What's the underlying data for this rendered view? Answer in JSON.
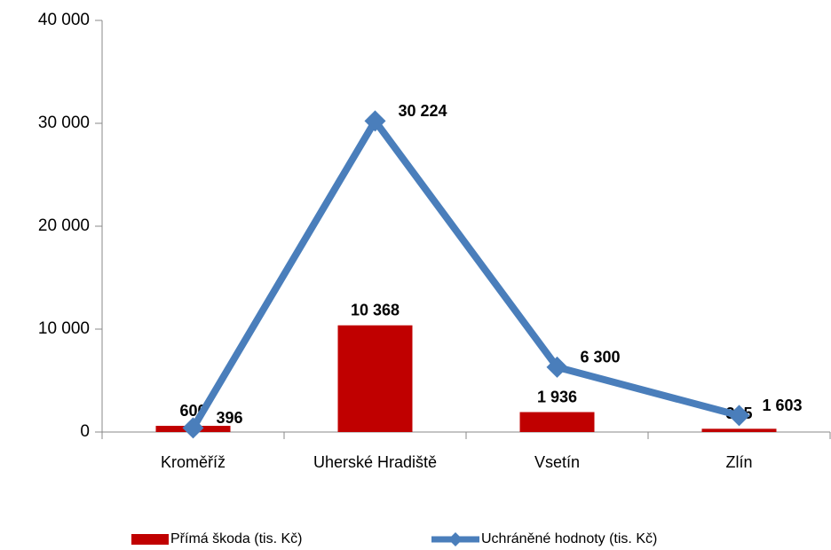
{
  "chart_data": {
    "type": "bar",
    "categories": [
      "Kroměříž",
      "Uherské Hradiště",
      "Vsetín",
      "Zlín"
    ],
    "series": [
      {
        "name": "Přímá škoda (tis. Kč)",
        "type": "bar",
        "color": "#c00000",
        "values": [
          600,
          10368,
          1936,
          315
        ],
        "value_labels": [
          "600",
          "10 368",
          "1 936",
          "315"
        ]
      },
      {
        "name": "Uchráněné hodnoty (tis. Kč)",
        "type": "line",
        "color": "#4a7ebb",
        "values": [
          396,
          30224,
          6300,
          1603
        ],
        "value_labels": [
          "396",
          "30 224",
          "6 300",
          "1 603"
        ]
      }
    ],
    "ylim": [
      0,
      40000
    ],
    "yticks": [
      0,
      {
        "value": 10000,
        "label": "10 000"
      },
      {
        "value": 20000,
        "label": "20 000"
      },
      {
        "value": 30000,
        "label": "30 000"
      },
      {
        "value": 40000,
        "label": "40 000"
      }
    ],
    "legend": "bottom"
  }
}
